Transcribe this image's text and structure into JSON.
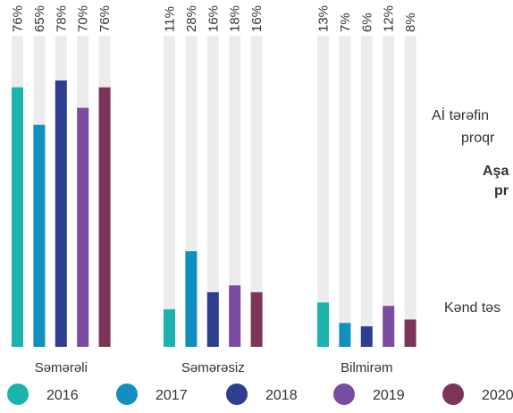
{
  "chart_data": {
    "type": "bar",
    "categories": [
      "Səmərəli",
      "Səmərəsiz",
      "Bilmirəm"
    ],
    "ylim": [
      0,
      100
    ],
    "series": [
      {
        "name": "2016",
        "color": "#1bb3ab",
        "values": [
          76,
          11,
          13
        ],
        "value_labels": [
          "76%",
          "11%",
          "13%"
        ]
      },
      {
        "name": "2017",
        "color": "#1190c0",
        "values": [
          65,
          28,
          7
        ],
        "value_labels": [
          "65%",
          "28%",
          "7%"
        ]
      },
      {
        "name": "2018",
        "color": "#2d3f8e",
        "values": [
          78,
          16,
          6
        ],
        "value_labels": [
          "78%",
          "16%",
          "6%"
        ]
      },
      {
        "name": "2019",
        "color": "#7a4c9f",
        "values": [
          70,
          18,
          12
        ],
        "value_labels": [
          "70%",
          "18%",
          "12%"
        ]
      },
      {
        "name": "2020",
        "color": "#7d3459",
        "values": [
          76,
          16,
          8
        ],
        "value_labels": [
          "76%",
          "16%",
          "8%"
        ]
      }
    ],
    "annotations": [
      "Aİ tərəfin",
      "proqr",
      "Aşa",
      "pr",
      "Kənd təs"
    ]
  }
}
